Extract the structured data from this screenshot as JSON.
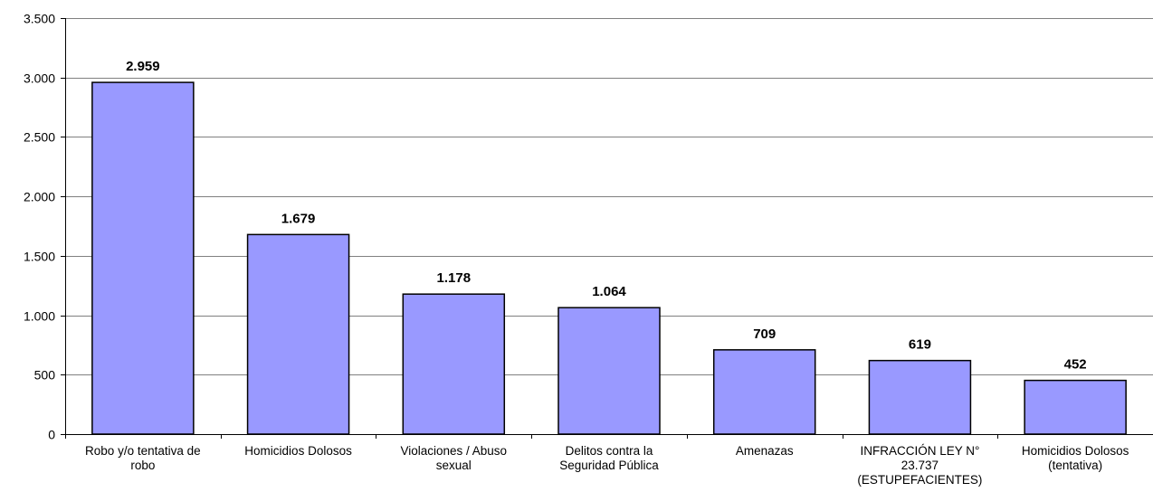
{
  "chart_data": {
    "type": "bar",
    "categories": [
      "Robo y/o tentativa de robo",
      "Homicidios Dolosos",
      "Violaciones / Abuso sexual",
      "Delitos contra la Seguridad Pública",
      "Amenazas",
      "INFRACCIÓN LEY N° 23.737 (ESTUPEFACIENTES)",
      "Homicidios Dolosos (tentativa)"
    ],
    "category_label_lines": [
      [
        "Robo y/o tentativa de",
        "robo"
      ],
      [
        "Homicidios Dolosos"
      ],
      [
        "Violaciones / Abuso",
        "sexual"
      ],
      [
        "Delitos contra la",
        "Seguridad Pública"
      ],
      [
        "Amenazas"
      ],
      [
        "INFRACCIÓN LEY N°",
        "23.737",
        "(ESTUPEFACIENTES)"
      ],
      [
        "Homicidios Dolosos",
        "(tentativa)"
      ]
    ],
    "values": [
      2959,
      1679,
      1178,
      1064,
      709,
      619,
      452
    ],
    "data_labels": [
      "2.959",
      "1.679",
      "1.178",
      "1.064",
      "709",
      "619",
      "452"
    ],
    "ylim": [
      0,
      3500
    ],
    "yticks": [
      0,
      500,
      1000,
      1500,
      2000,
      2500,
      3000,
      3500
    ],
    "ytick_labels": [
      "0",
      "500",
      "1.000",
      "1.500",
      "2.000",
      "2.500",
      "3.000",
      "3.500"
    ],
    "grid": true,
    "legend": "none",
    "colors": {
      "bar_fill": "#9999ff",
      "bar_stroke": "#000000",
      "grid": "#808080",
      "axis": "#000000"
    }
  }
}
